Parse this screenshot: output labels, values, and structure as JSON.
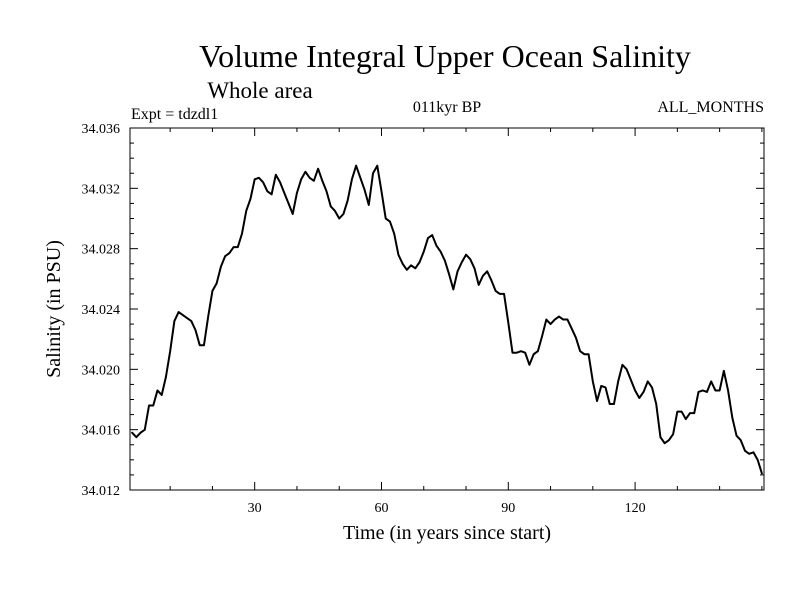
{
  "chart_data": {
    "type": "line",
    "title": "Volume Integral Upper Ocean Salinity",
    "subtitle": "Whole area",
    "annotations": {
      "left": "Expt = tdzdl1",
      "center": "011kyr BP",
      "right": "ALL_MONTHS"
    },
    "xlabel": "Time (in years since start)",
    "ylabel": "Salinity (in PSU)",
    "xlim": [
      0.5,
      150.5
    ],
    "ylim": [
      34.012,
      34.036
    ],
    "x_ticks": [
      30,
      60,
      90,
      120
    ],
    "x_tick_labels": [
      "30",
      "60",
      "90",
      "120"
    ],
    "y_ticks": [
      34.012,
      34.016,
      34.02,
      34.024,
      34.028,
      34.032,
      34.036
    ],
    "y_tick_labels": [
      "34.012",
      "34.016",
      "34.020",
      "34.024",
      "34.028",
      "34.032",
      "34.036"
    ],
    "grid": false,
    "series": [
      {
        "name": "Salinity",
        "x": [
          1,
          2,
          3,
          4,
          5,
          6,
          7,
          8,
          9,
          10,
          11,
          12,
          13,
          14,
          15,
          16,
          17,
          18,
          19,
          20,
          21,
          22,
          23,
          24,
          25,
          26,
          27,
          28,
          29,
          30,
          31,
          32,
          33,
          34,
          35,
          36,
          37,
          38,
          39,
          40,
          41,
          42,
          43,
          44,
          45,
          46,
          47,
          48,
          49,
          50,
          51,
          52,
          53,
          54,
          55,
          56,
          57,
          58,
          59,
          60,
          61,
          62,
          63,
          64,
          65,
          66,
          67,
          68,
          69,
          70,
          71,
          72,
          73,
          74,
          75,
          76,
          77,
          78,
          79,
          80,
          81,
          82,
          83,
          84,
          85,
          86,
          87,
          88,
          89,
          90,
          91,
          92,
          93,
          94,
          95,
          96,
          97,
          98,
          99,
          100,
          101,
          102,
          103,
          104,
          105,
          106,
          107,
          108,
          109,
          110,
          111,
          112,
          113,
          114,
          115,
          116,
          117,
          118,
          119,
          120,
          121,
          122,
          123,
          124,
          125,
          126,
          127,
          128,
          129,
          130,
          131,
          132,
          133,
          134,
          135,
          136,
          137,
          138,
          139,
          140,
          141,
          142,
          143,
          144,
          145,
          146,
          147,
          148,
          149,
          150
        ],
        "values": [
          34.0158,
          34.0155,
          34.0158,
          34.016,
          34.0176,
          34.0176,
          34.0186,
          34.0183,
          34.0195,
          34.0212,
          34.0232,
          34.0238,
          34.0236,
          34.0234,
          34.0232,
          34.0226,
          34.0216,
          34.0216,
          34.0235,
          34.0252,
          34.0257,
          34.0268,
          34.0275,
          34.0277,
          34.0281,
          34.0281,
          34.029,
          34.0305,
          34.0313,
          34.0326,
          34.0327,
          34.0324,
          34.0318,
          34.0316,
          34.0329,
          34.0324,
          34.0317,
          34.031,
          34.0303,
          34.0317,
          34.0326,
          34.0331,
          34.0327,
          34.0325,
          34.0333,
          34.0325,
          34.0318,
          34.0308,
          34.0305,
          34.03,
          34.0303,
          34.0312,
          34.0326,
          34.0335,
          34.0327,
          34.0319,
          34.0309,
          34.033,
          34.0335,
          34.0318,
          34.03,
          34.0298,
          34.029,
          34.0276,
          34.027,
          34.0266,
          34.0269,
          34.0267,
          34.0271,
          34.0278,
          34.0287,
          34.0289,
          34.0282,
          34.0278,
          34.0272,
          34.0263,
          34.0253,
          34.0265,
          34.0271,
          34.0276,
          34.0273,
          34.0267,
          34.0256,
          34.0262,
          34.0265,
          34.0259,
          34.0252,
          34.025,
          34.025,
          34.0231,
          34.0211,
          34.0211,
          34.0212,
          34.0211,
          34.0203,
          34.021,
          34.0212,
          34.0222,
          34.0233,
          34.023,
          34.0233,
          34.0235,
          34.0233,
          34.0233,
          34.0227,
          34.0221,
          34.0212,
          34.021,
          34.021,
          34.0192,
          34.0179,
          34.0189,
          34.0188,
          34.0177,
          34.0177,
          34.0192,
          34.0203,
          34.02,
          34.0193,
          34.0186,
          34.0181,
          34.0185,
          34.0192,
          34.0188,
          34.0177,
          34.0155,
          34.0151,
          34.0153,
          34.0157,
          34.0172,
          34.0172,
          34.0167,
          34.0171,
          34.0171,
          34.0185,
          34.0186,
          34.0185,
          34.0192,
          34.0186,
          34.0186,
          34.0199,
          34.0186,
          34.0168,
          34.0156,
          34.0153,
          34.0146,
          34.0144,
          34.0145,
          34.014,
          34.0131
        ]
      }
    ]
  }
}
